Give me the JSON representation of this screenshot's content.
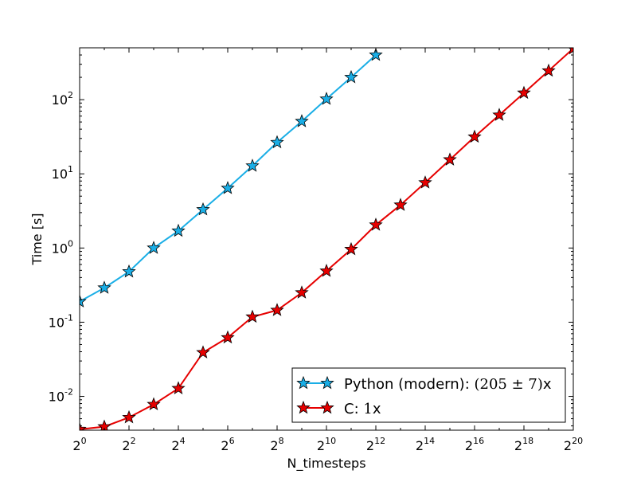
{
  "chart_data": {
    "type": "line",
    "xlabel": "N_timesteps",
    "ylabel": "Time [s]",
    "xscale": "log2",
    "yscale": "log10",
    "xlim": [
      1,
      1048576
    ],
    "ylim": [
      0.0035,
      500
    ],
    "x_ticks": [
      {
        "base": "2",
        "exp": "0",
        "value": 1
      },
      {
        "base": "2",
        "exp": "2",
        "value": 4
      },
      {
        "base": "2",
        "exp": "4",
        "value": 16
      },
      {
        "base": "2",
        "exp": "6",
        "value": 64
      },
      {
        "base": "2",
        "exp": "8",
        "value": 256
      },
      {
        "base": "2",
        "exp": "10",
        "value": 1024
      },
      {
        "base": "2",
        "exp": "12",
        "value": 4096
      },
      {
        "base": "2",
        "exp": "14",
        "value": 16384
      },
      {
        "base": "2",
        "exp": "16",
        "value": 65536
      },
      {
        "base": "2",
        "exp": "18",
        "value": 262144
      },
      {
        "base": "2",
        "exp": "20",
        "value": 1048576
      }
    ],
    "y_ticks": [
      {
        "base": "10",
        "exp": "-2",
        "value": 0.01
      },
      {
        "base": "10",
        "exp": "-1",
        "value": 0.1
      },
      {
        "base": "10",
        "exp": "0",
        "value": 1
      },
      {
        "base": "10",
        "exp": "1",
        "value": 10
      },
      {
        "base": "10",
        "exp": "2",
        "value": 100
      }
    ],
    "grid": false,
    "legend_position": "lower-right",
    "series": [
      {
        "name": "Python (modern): (205 ± 7)x",
        "label_prefix": "Python (modern): ",
        "label_math": "(205 ± 7)",
        "label_suffix": "x",
        "color": "#1aaee6",
        "marker": "star",
        "x": [
          1,
          2,
          4,
          8,
          16,
          32,
          64,
          128,
          256,
          512,
          1024,
          2048,
          4096
        ],
        "y": [
          0.19,
          0.29,
          0.48,
          1.0,
          1.7,
          3.3,
          6.4,
          12.8,
          26.5,
          51,
          102,
          200,
          400
        ]
      },
      {
        "name": "C: 1x",
        "label_prefix": "C: ",
        "label_math": "1",
        "label_suffix": "x",
        "color": "#e60000",
        "marker": "star",
        "x": [
          1,
          2,
          4,
          8,
          16,
          32,
          64,
          128,
          256,
          512,
          1024,
          2048,
          4096,
          8192,
          16384,
          32768,
          65536,
          131072,
          262144,
          524288,
          1048576
        ],
        "y": [
          0.0036,
          0.0039,
          0.0052,
          0.0078,
          0.0128,
          0.039,
          0.062,
          0.118,
          0.145,
          0.25,
          0.49,
          0.96,
          2.05,
          3.8,
          7.6,
          15.5,
          31.5,
          62,
          123,
          245,
          490
        ]
      }
    ]
  }
}
